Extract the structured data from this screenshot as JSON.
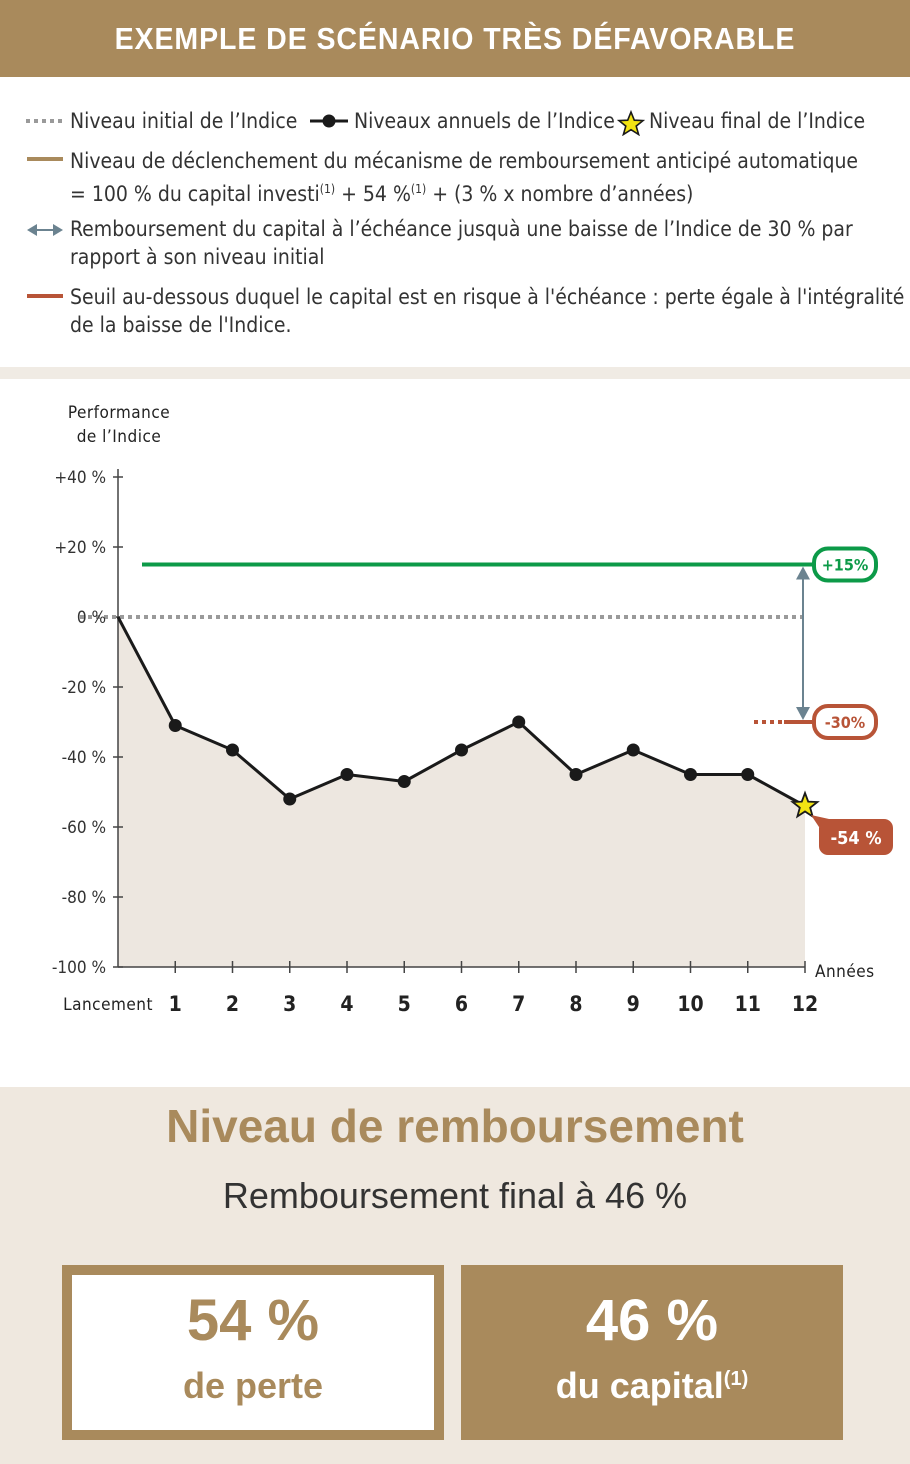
{
  "header": {
    "title": "EXEMPLE DE SCÉNARIO TRÈS DÉFAVORABLE"
  },
  "legend": {
    "initial": "Niveau initial de l’Indice",
    "annual": "Niveaux annuels de l’Indice",
    "final": "Niveau final de l’Indice",
    "trigger_line1": "Niveau de déclenchement du mécanisme de remboursement anticipé automatique",
    "trigger_line2_a": "= 100 % du capital investi",
    "trigger_sup1": "(1)",
    "trigger_line2_b": " + 54 %",
    "trigger_sup2": "(1)",
    "trigger_line2_c": " + (3 % x nombre d’années)",
    "protection_line1": "Remboursement du capital à l’échéance jusquà une baisse de l’Indice de 30 % par",
    "protection_line2": "rapport à son niveau initial",
    "risk_line1": "Seuil au-dessous duquel le capital est en risque à l'échéance : perte égale à l'intégralité",
    "risk_line2": "de la baisse de l'Indice."
  },
  "colors": {
    "gold": "#a98a5c",
    "trigger": "#0c9a48",
    "risk": "#b85437",
    "series": "#1a1a1a",
    "arrow": "#6b8390",
    "area": "#ede7e0",
    "initial": "#9a9a9a",
    "star": "#f2e313"
  },
  "chart_data": {
    "type": "line",
    "ylabel_line1": "Performance",
    "ylabel_line2": "de l’Indice",
    "xlabel": "Années",
    "ylim": [
      -100,
      40
    ],
    "yticks": [
      40,
      20,
      0,
      -20,
      -40,
      -60,
      -80,
      -100
    ],
    "ytick_labels": [
      "+40 %",
      "+20 %",
      "0 %",
      "-20 %",
      "-40 %",
      "-60 %",
      "-80 %",
      "-100 %"
    ],
    "x": [
      0,
      1,
      2,
      3,
      4,
      5,
      6,
      7,
      8,
      9,
      10,
      11,
      12
    ],
    "xtick_labels": [
      "Lancement",
      "1",
      "2",
      "3",
      "4",
      "5",
      "6",
      "7",
      "8",
      "9",
      "10",
      "11",
      "12"
    ],
    "series": [
      {
        "values": [
          0,
          -31,
          -38,
          -52,
          -45,
          -47,
          -38,
          -30,
          -45,
          -38,
          -45,
          -45,
          -54
        ]
      }
    ],
    "initial_level": 0,
    "trigger_level": 15,
    "risk_level": -30,
    "final_value": -54,
    "labels": {
      "trigger": "+15%",
      "risk": "-30%",
      "final": "-54 %"
    }
  },
  "summary": {
    "title": "Niveau de remboursement",
    "subtitle": "Remboursement final à 46 %",
    "loss_value": "54 %",
    "loss_label": "de perte",
    "capital_value": "46 %",
    "capital_label": "du capital",
    "capital_sup": "(1)"
  }
}
